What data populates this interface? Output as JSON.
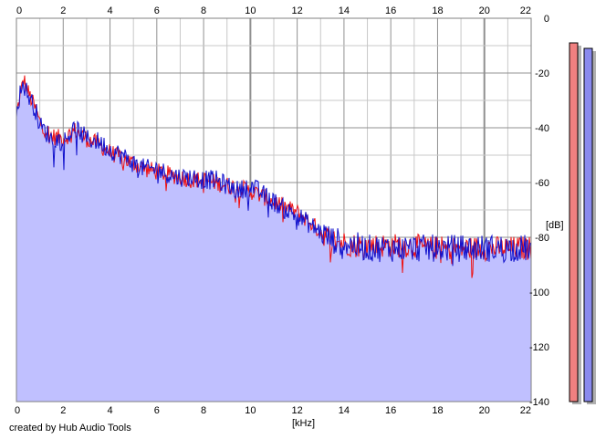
{
  "credit": "created by Hub Audio Tools",
  "colors": {
    "left_channel": "#ee1111",
    "right_channel": "#1111cc",
    "fill": "#c0c0ff",
    "grid": "#c8c8c8",
    "major_grid": "#909090",
    "meter_left": "#f08080",
    "meter_right": "#8a8aee"
  },
  "chart_data": {
    "type": "area",
    "title": "",
    "xlabel": "[kHz]",
    "ylabel": "[dB]",
    "xlim": [
      0,
      22
    ],
    "ylim": [
      -140,
      0
    ],
    "x_ticks": [
      "0",
      "2",
      "4",
      "6",
      "8",
      "10",
      "12",
      "14",
      "16",
      "18",
      "20",
      "22"
    ],
    "x_ticks_top": [
      "0",
      "2",
      "4",
      "6",
      "8",
      "10",
      "12",
      "14",
      "16",
      "18",
      "20",
      "22"
    ],
    "y_ticks": [
      "0",
      "-20",
      "-40",
      "-60",
      "-80",
      "-100",
      "-120",
      "-140"
    ],
    "grid": true,
    "x": [
      0,
      0.2,
      0.3,
      0.5,
      0.8,
      1.0,
      1.5,
      2.0,
      2.5,
      3.0,
      3.5,
      4.0,
      4.5,
      5.0,
      5.5,
      6.0,
      6.5,
      7.0,
      7.5,
      8.0,
      8.5,
      9.0,
      9.5,
      10.0,
      10.5,
      11.0,
      11.5,
      12.0,
      12.5,
      13.0,
      13.5,
      14.0,
      14.5,
      15.0,
      15.5,
      16.0,
      16.5,
      17.0,
      17.5,
      18.0,
      18.5,
      19.0,
      19.5,
      20.0,
      20.5,
      21.0,
      21.5,
      22.0
    ],
    "series": [
      {
        "channel": "left",
        "values": [
          -35,
          -27,
          -22,
          -27,
          -33,
          -38,
          -43,
          -44,
          -41,
          -44,
          -46,
          -49,
          -51,
          -53,
          -55,
          -56,
          -57,
          -58,
          -59,
          -59,
          -60,
          -61,
          -62,
          -63,
          -65,
          -67,
          -69,
          -71,
          -74,
          -78,
          -81,
          -82,
          -83,
          -83,
          -83,
          -83,
          -83,
          -83,
          -84,
          -84,
          -84,
          -84,
          -84,
          -84,
          -84,
          -84,
          -84,
          -84
        ]
      },
      {
        "channel": "right",
        "values": [
          -33,
          -26,
          -24,
          -28,
          -33,
          -39,
          -44,
          -45,
          -40,
          -44,
          -45,
          -48,
          -50,
          -53,
          -55,
          -55,
          -57,
          -58,
          -58,
          -59,
          -59,
          -61,
          -63,
          -61,
          -64,
          -67,
          -70,
          -72,
          -75,
          -78,
          -81,
          -82,
          -83,
          -84,
          -84,
          -84,
          -84,
          -84,
          -84,
          -84,
          -84,
          -84,
          -84,
          -84,
          -84,
          -84,
          -84,
          -84
        ]
      }
    ],
    "meters": {
      "left": -7,
      "right": -9
    }
  }
}
